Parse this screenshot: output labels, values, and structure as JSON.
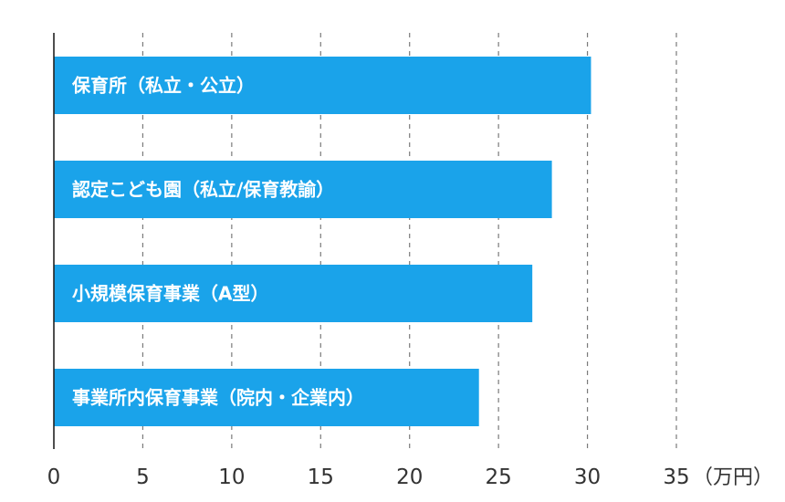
{
  "colors": {
    "bar": "#1aa3ea",
    "label": "#ffffff",
    "grid": "#7a7a7a",
    "axis": "#222222"
  },
  "chart_data": {
    "type": "bar",
    "orientation": "horizontal",
    "categories": [
      "保育所（私立・公立）",
      "認定こども園（私立/保育教諭）",
      "小規模保育事業（A型）",
      "事業所内保育事業（院内・企業内）"
    ],
    "values": [
      30.2,
      28,
      26.9,
      23.9
    ],
    "xlim": [
      0,
      35
    ],
    "xticks": [
      0,
      5,
      10,
      15,
      20,
      25,
      30,
      35
    ],
    "xtick_labels": [
      "0",
      "5",
      "10",
      "15",
      "20",
      "25",
      "30",
      "35"
    ],
    "unit": "（万円）",
    "grid": "vertical-dashed",
    "labels_inside_bars": true
  }
}
